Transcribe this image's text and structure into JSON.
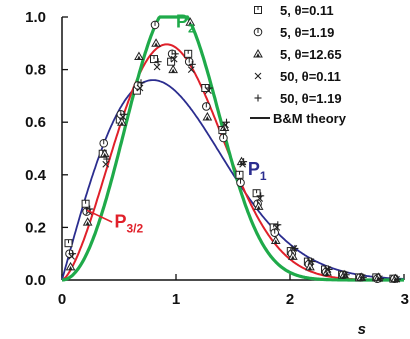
{
  "chart_data": {
    "type": "line",
    "xlabel": "s",
    "ylabel": "",
    "xlim": [
      0,
      3
    ],
    "ylim": [
      0,
      1.0
    ],
    "x_ticks": [
      "0",
      "1",
      "2",
      "3"
    ],
    "y_ticks": [
      "0.0",
      "0.2",
      "0.4",
      "0.6",
      "0.8",
      "1.0"
    ],
    "grid": false,
    "legend_position": "top-right",
    "curve_labels": [
      {
        "text": "P",
        "sub": "2",
        "color": "#1faa4a",
        "at": [
          1.0,
          0.96
        ]
      },
      {
        "text": "P",
        "sub": "1",
        "color": "#2b2d8f",
        "at": [
          1.63,
          0.4
        ]
      },
      {
        "text": "P",
        "sub": "3/2",
        "color": "#e0202a",
        "at": [
          0.46,
          0.2
        ]
      }
    ],
    "theory_curves": [
      {
        "key": "P1",
        "beta": 1,
        "color": "#2b2d8f",
        "width": 1.8
      },
      {
        "key": "P32",
        "beta": 1.5,
        "color": "#e0202a",
        "width": 2.0
      },
      {
        "key": "P2",
        "beta": 2,
        "color": "#1faa4a",
        "width": 3.2
      }
    ],
    "series": [
      {
        "name": "5, θ=0.11",
        "marker": "square-half",
        "x": [
          0.075,
          0.225,
          0.375,
          0.525,
          0.675,
          0.825,
          0.975,
          1.125,
          1.275,
          1.425,
          1.575,
          1.725,
          1.875,
          2.025,
          2.175,
          2.325,
          2.475,
          2.625,
          2.775,
          2.925
        ],
        "y": [
          0.14,
          0.29,
          0.48,
          0.61,
          0.72,
          0.84,
          0.83,
          0.86,
          0.73,
          0.57,
          0.4,
          0.33,
          0.2,
          0.11,
          0.07,
          0.04,
          0.02,
          0.01,
          0.01,
          0.005
        ]
      },
      {
        "name": "5, θ=1.19",
        "marker": "circle-line",
        "x": [
          0.075,
          0.225,
          0.375,
          0.525,
          0.675,
          0.825,
          0.975,
          1.125,
          1.275,
          1.425,
          1.575,
          1.725,
          1.875,
          2.025,
          2.175,
          2.325,
          2.475,
          2.625,
          2.775,
          2.925
        ],
        "y": [
          0.1,
          0.26,
          0.52,
          0.63,
          0.74,
          0.97,
          0.86,
          0.83,
          0.66,
          0.54,
          0.37,
          0.29,
          0.18,
          0.1,
          0.06,
          0.03,
          0.02,
          0.01,
          0.005,
          0.005
        ]
      },
      {
        "name": "5, θ=12.65",
        "marker": "triangle",
        "x": [
          0.075,
          0.225,
          0.375,
          0.525,
          0.675,
          0.825,
          0.975,
          1.125,
          1.275,
          1.425,
          1.575,
          1.725,
          1.875,
          2.025,
          2.175,
          2.325,
          2.475,
          2.625,
          2.775,
          2.925
        ],
        "y": [
          0.05,
          0.22,
          0.48,
          0.6,
          0.85,
          0.9,
          0.8,
          0.98,
          0.62,
          0.58,
          0.45,
          0.28,
          0.15,
          0.09,
          0.05,
          0.03,
          0.02,
          0.01,
          0.01,
          0.005
        ]
      },
      {
        "name": "50, θ=0.11",
        "marker": "x",
        "x": [
          0.075,
          0.225,
          0.375,
          0.525,
          0.675,
          0.825,
          0.975,
          1.125,
          1.275,
          1.425,
          1.575,
          1.725,
          1.875,
          2.025,
          2.175,
          2.325,
          2.475,
          2.625,
          2.775,
          2.925
        ],
        "y": [
          0.09,
          0.26,
          0.44,
          0.62,
          0.73,
          0.81,
          0.84,
          0.8,
          0.72,
          0.59,
          0.44,
          0.31,
          0.2,
          0.12,
          0.07,
          0.04,
          0.02,
          0.01,
          0.005,
          0.003
        ]
      },
      {
        "name": "50, θ=1.19",
        "marker": "plus",
        "x": [
          0.075,
          0.225,
          0.375,
          0.525,
          0.675,
          0.825,
          0.975,
          1.125,
          1.275,
          1.425,
          1.575,
          1.725,
          1.875,
          2.025,
          2.175,
          2.325,
          2.475,
          2.625,
          2.775,
          2.925
        ],
        "y": [
          0.1,
          0.27,
          0.46,
          0.63,
          0.75,
          0.83,
          0.86,
          0.82,
          0.73,
          0.6,
          0.45,
          0.32,
          0.21,
          0.12,
          0.07,
          0.04,
          0.02,
          0.01,
          0.005,
          0.003
        ]
      }
    ],
    "theory_legend": "B&M theory"
  }
}
